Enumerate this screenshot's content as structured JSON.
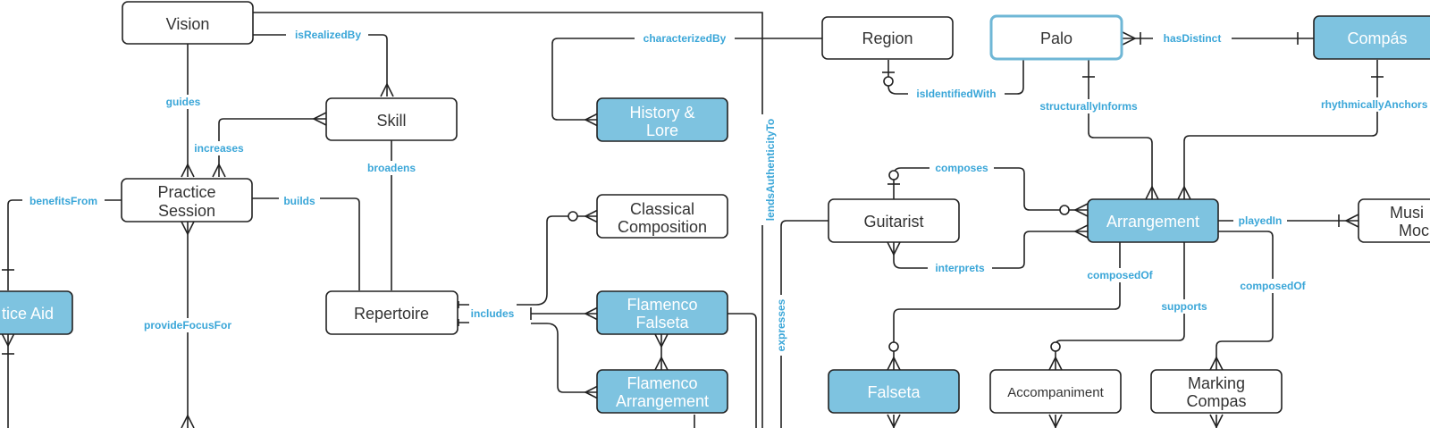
{
  "entities": {
    "vision": "Vision",
    "skill": "Skill",
    "practice_session_1": "Practice",
    "practice_session_2": "Session",
    "practice_aid": "tice Aid",
    "repertoire": "Repertoire",
    "history_1": "History &",
    "history_2": "Lore",
    "classical_1": "Classical",
    "classical_2": "Composition",
    "flamenco_falseta_1": "Flamenco",
    "flamenco_falseta_2": "Falseta",
    "flamenco_arrangement_1": "Flamenco",
    "flamenco_arrangement_2": "Arrangement",
    "region": "Region",
    "palo": "Palo",
    "compas": "Compás",
    "guitarist": "Guitarist",
    "arrangement": "Arrangement",
    "musical_mode_1": "Musi",
    "musical_mode_2": "Moc",
    "falseta": "Falseta",
    "accompaniment": "Accompaniment",
    "marking_1": "Marking",
    "marking_2": "Compas"
  },
  "relationships": {
    "is_realized_by": "isRealizedBy",
    "guides": "guides",
    "increases": "increases",
    "broadens": "broadens",
    "benefits_from": "benefitsFrom",
    "builds": "builds",
    "provide_focus_for": "provideFocusFor",
    "includes": "includes",
    "characterized_by": "characterizedBy",
    "lends_authenticity_to": "lendsAuthenticityTo",
    "expresses": "expresses",
    "is_identified_with": "isIdentifiedWith",
    "structurally_informs": "structurallyInforms",
    "has_distinct": "hasDistinct",
    "rhythmically_anchors": "rhythmicallyAnchors",
    "composes": "composes",
    "interprets": "interprets",
    "played_in": "playedIn",
    "composed_of_1": "composedOf",
    "supports": "supports",
    "composed_of_2": "composedOf"
  },
  "colors": {
    "highlight_fill": "#7ec3e0",
    "label_blue": "#3aa6d8",
    "palo_border": "#6fb7d6"
  }
}
